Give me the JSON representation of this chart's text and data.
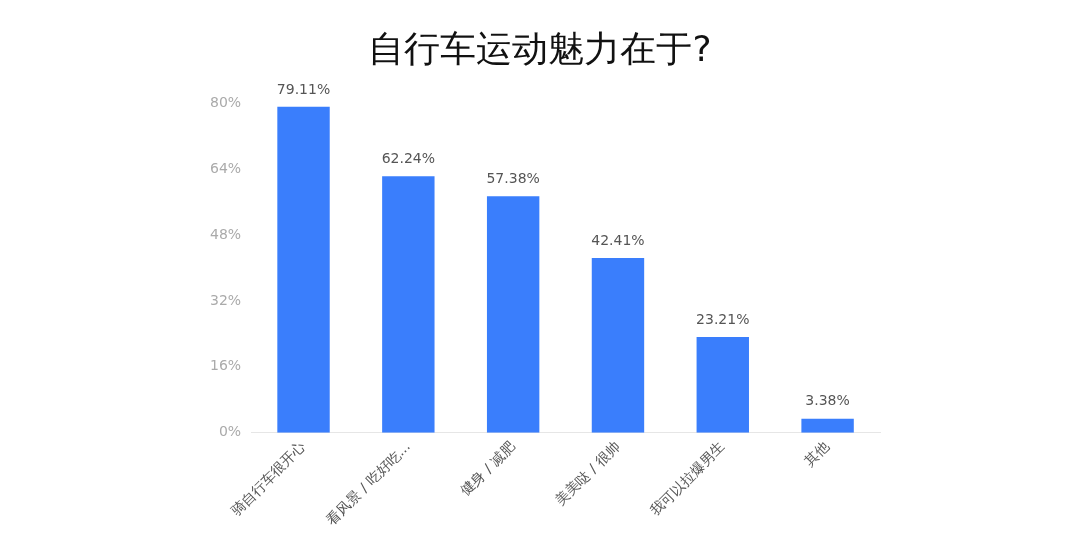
{
  "chart_data": {
    "type": "bar",
    "title": "自行车运动魅力在于?",
    "categories": [
      "骑自行车很开心",
      "看风景 / 吃好吃...",
      "健身 / 减肥",
      "美美哒 / 很帅",
      "我可以拉爆男生",
      "其他"
    ],
    "values": [
      79.11,
      62.24,
      57.38,
      42.41,
      23.21,
      3.38
    ],
    "value_labels": [
      "79.11%",
      "62.24%",
      "57.38%",
      "42.41%",
      "23.21%",
      "3.38%"
    ],
    "color": "#3a7efc",
    "ylim": [
      0,
      80
    ],
    "yticks": [
      {
        "value": 0,
        "label": "0%"
      },
      {
        "value": 16,
        "label": "16%"
      },
      {
        "value": 32,
        "label": "32%"
      },
      {
        "value": 48,
        "label": "48%"
      },
      {
        "value": 64,
        "label": "64%"
      },
      {
        "value": 80,
        "label": "80%"
      }
    ],
    "grid": false
  }
}
